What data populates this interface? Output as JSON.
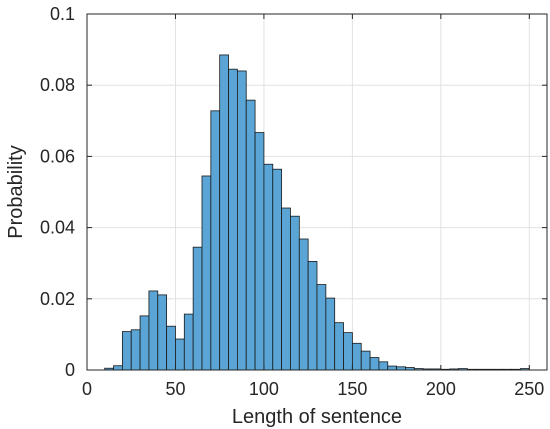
{
  "colors": {
    "bar_fill": "#5aa5d6",
    "bar_stroke": "#1a1a1a",
    "grid": "#e2e2e2",
    "axis": "#262626",
    "background": "#ffffff"
  },
  "chart_data": {
    "type": "bar",
    "title": "",
    "xlabel": "Length of sentence",
    "ylabel": "Probability",
    "xlim": [
      0,
      260
    ],
    "ylim": [
      0,
      0.1
    ],
    "xticks": [
      0,
      50,
      100,
      150,
      200,
      250
    ],
    "yticks": [
      0,
      0.02,
      0.04,
      0.06,
      0.08,
      0.1
    ],
    "xtick_labels": [
      "0",
      "50",
      "100",
      "150",
      "200",
      "250"
    ],
    "ytick_labels": [
      "0",
      "0.02",
      "0.04",
      "0.06",
      "0.08",
      "0.1"
    ],
    "grid": true,
    "bin_width": 5,
    "bin_starts": [
      10,
      15,
      20,
      25,
      30,
      35,
      40,
      45,
      50,
      55,
      60,
      65,
      70,
      75,
      80,
      85,
      90,
      95,
      100,
      105,
      110,
      115,
      120,
      125,
      130,
      135,
      140,
      145,
      150,
      155,
      160,
      165,
      170,
      175,
      180,
      185,
      190,
      195,
      200,
      205,
      210,
      215,
      220,
      225,
      230,
      235,
      240,
      245
    ],
    "values": [
      0.0005,
      0.0012,
      0.0108,
      0.0113,
      0.0152,
      0.0222,
      0.0211,
      0.0123,
      0.0087,
      0.0157,
      0.0345,
      0.0545,
      0.0728,
      0.0885,
      0.0845,
      0.084,
      0.0758,
      0.0667,
      0.0578,
      0.0564,
      0.0455,
      0.0432,
      0.0368,
      0.0305,
      0.024,
      0.0202,
      0.0133,
      0.0105,
      0.0075,
      0.0053,
      0.0035,
      0.0023,
      0.0011,
      0.0009,
      0.0007,
      0.0004,
      0.0003,
      0.0003,
      0.0002,
      0.0003,
      0.0004,
      0.0002,
      0.0002,
      0.0002,
      0.0002,
      0.0002,
      0.0002,
      0.0004
    ]
  }
}
